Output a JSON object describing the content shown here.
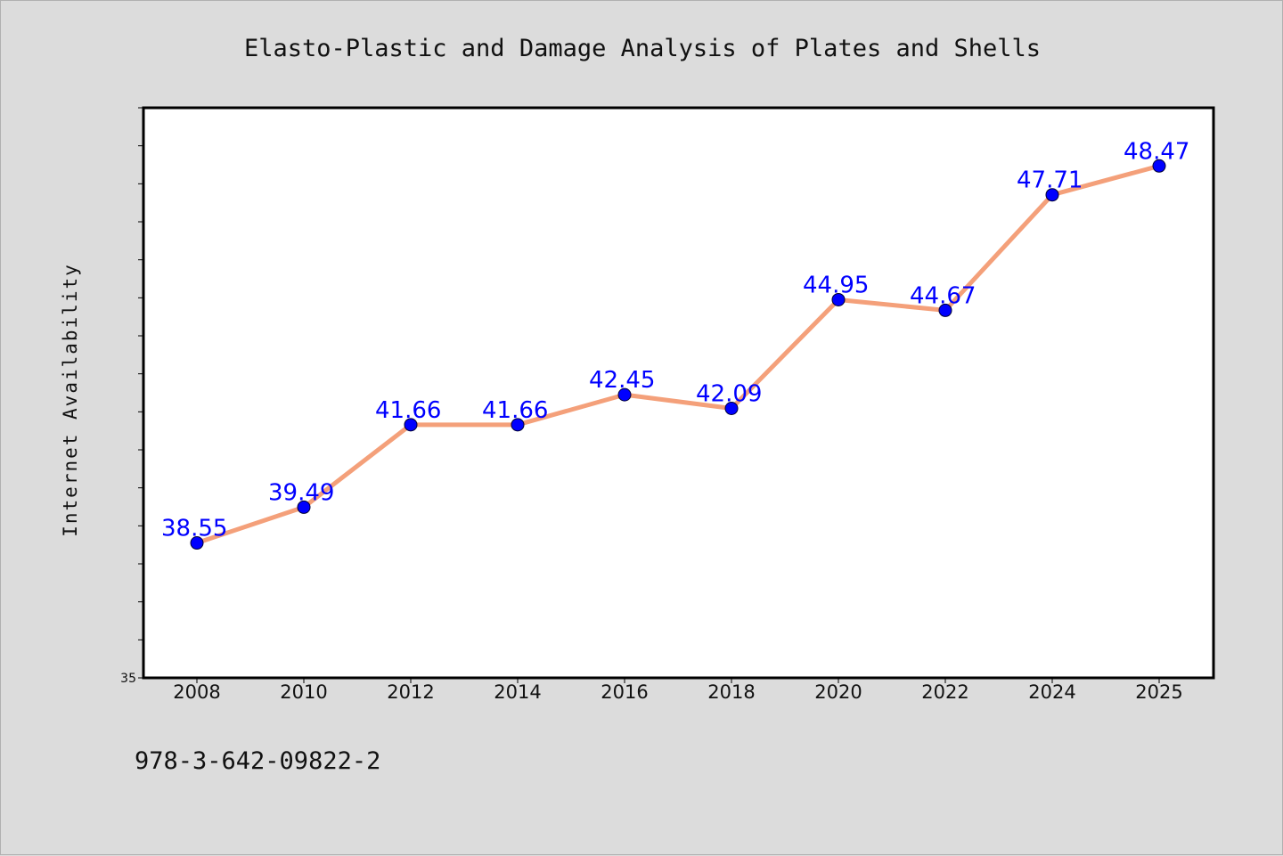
{
  "chart_data": {
    "type": "line",
    "title": "Elasto-Plastic and Damage Analysis of Plates and Shells",
    "xlabel": "",
    "ylabel": "Internet Availability",
    "categories": [
      "2008",
      "2010",
      "2012",
      "2014",
      "2016",
      "2018",
      "2020",
      "2022",
      "2024",
      "2025"
    ],
    "series": [
      {
        "values": [
          38.55,
          39.49,
          41.66,
          41.66,
          42.45,
          42.09,
          44.95,
          44.67,
          47.71,
          48.47
        ],
        "labels": [
          "38.55",
          "39.49",
          "41.66",
          "41.66",
          "42.45",
          "42.09",
          "44.95",
          "44.67",
          "47.71",
          "48.47"
        ],
        "line_color": "#f4a07a",
        "marker_color": "#0000ff"
      }
    ],
    "ylim": [
      35,
      50
    ],
    "yticks_labeled": [
      "35"
    ],
    "grid": false,
    "legend": "none"
  },
  "footer": {
    "isbn": "978-3-642-09822-2"
  },
  "colors": {
    "background": "#dcdcdc",
    "plot_background": "#ffffff",
    "line": "#f4a07a",
    "marker": "#0000ff",
    "data_label": "#0000ff"
  }
}
